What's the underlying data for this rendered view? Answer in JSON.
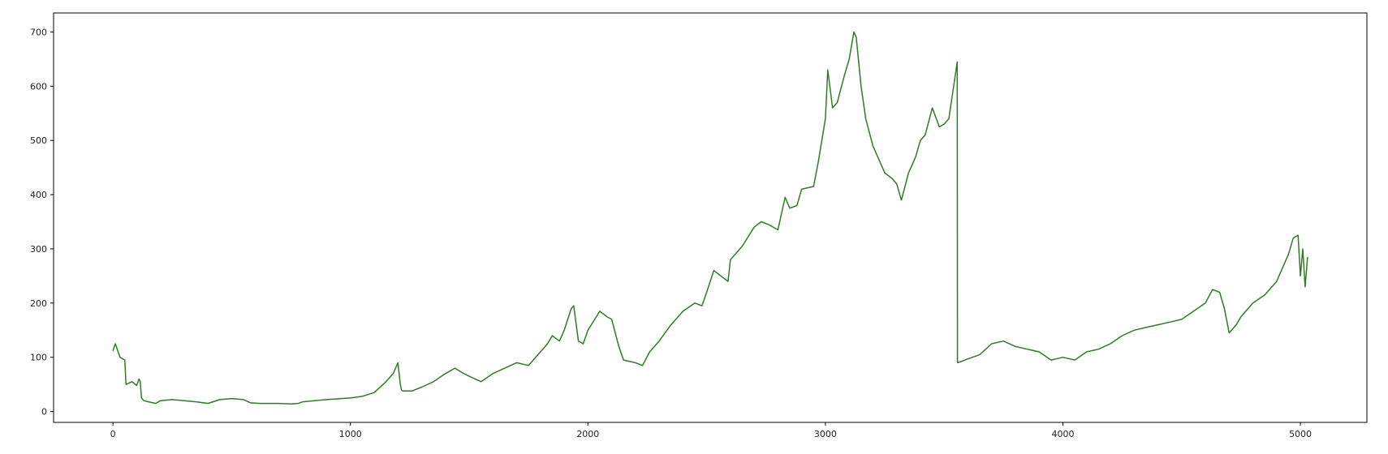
{
  "chart_data": {
    "type": "line",
    "title": "",
    "xlabel": "",
    "ylabel": "",
    "xlim": [
      -250,
      5280
    ],
    "ylim": [
      -20,
      735
    ],
    "grid": false,
    "legend": "none",
    "x_ticks": [
      0,
      1000,
      2000,
      3000,
      4000,
      5000
    ],
    "x_tick_labels": [
      "0",
      "1000",
      "2000",
      "3000",
      "4000",
      "5000"
    ],
    "y_ticks": [
      0,
      100,
      200,
      300,
      400,
      500,
      600,
      700
    ],
    "y_tick_labels": [
      "0",
      "100",
      "200",
      "300",
      "400",
      "500",
      "600",
      "700"
    ],
    "series": [
      {
        "color": "#2e7d24",
        "x": [
          0,
          10,
          30,
          50,
          55,
          80,
          100,
          110,
          115,
          120,
          130,
          150,
          180,
          200,
          250,
          300,
          350,
          400,
          450,
          500,
          550,
          580,
          620,
          700,
          750,
          780,
          800,
          900,
          1000,
          1050,
          1100,
          1150,
          1180,
          1200,
          1210,
          1215,
          1220,
          1260,
          1300,
          1350,
          1400,
          1440,
          1470,
          1500,
          1550,
          1600,
          1650,
          1700,
          1750,
          1780,
          1800,
          1830,
          1850,
          1880,
          1900,
          1930,
          1940,
          1960,
          1980,
          2000,
          2050,
          2080,
          2100,
          2130,
          2150,
          2200,
          2230,
          2260,
          2300,
          2350,
          2400,
          2450,
          2480,
          2500,
          2530,
          2560,
          2590,
          2600,
          2650,
          2700,
          2730,
          2760,
          2800,
          2830,
          2850,
          2880,
          2900,
          2950,
          2970,
          3000,
          3010,
          3030,
          3050,
          3080,
          3100,
          3120,
          3130,
          3150,
          3170,
          3200,
          3230,
          3250,
          3280,
          3300,
          3320,
          3350,
          3380,
          3400,
          3420,
          3450,
          3480,
          3500,
          3520,
          3540,
          3555,
          3556,
          3570,
          3600,
          3650,
          3700,
          3750,
          3800,
          3850,
          3900,
          3950,
          4000,
          4050,
          4100,
          4150,
          4200,
          4250,
          4300,
          4350,
          4400,
          4450,
          4500,
          4550,
          4600,
          4630,
          4660,
          4680,
          4700,
          4730,
          4750,
          4800,
          4850,
          4900,
          4950,
          4970,
          4990,
          5000,
          5010,
          5020,
          5030
        ],
        "values": [
          112,
          125,
          100,
          95,
          50,
          55,
          48,
          60,
          55,
          25,
          20,
          18,
          15,
          20,
          22,
          20,
          18,
          15,
          22,
          24,
          22,
          16,
          15,
          15,
          14,
          15,
          18,
          22,
          25,
          28,
          35,
          55,
          70,
          90,
          50,
          40,
          38,
          38,
          45,
          55,
          70,
          80,
          72,
          65,
          55,
          70,
          80,
          90,
          85,
          100,
          110,
          125,
          140,
          130,
          150,
          190,
          195,
          130,
          125,
          150,
          185,
          175,
          170,
          120,
          95,
          90,
          85,
          110,
          130,
          160,
          185,
          200,
          195,
          220,
          260,
          250,
          240,
          280,
          305,
          340,
          350,
          345,
          335,
          395,
          375,
          380,
          410,
          415,
          460,
          540,
          630,
          560,
          570,
          620,
          650,
          700,
          690,
          600,
          540,
          490,
          460,
          440,
          430,
          420,
          390,
          440,
          470,
          500,
          510,
          560,
          525,
          530,
          540,
          600,
          645,
          90,
          92,
          97,
          105,
          125,
          130,
          120,
          115,
          110,
          95,
          100,
          95,
          110,
          115,
          125,
          140,
          150,
          155,
          160,
          165,
          170,
          185,
          200,
          225,
          220,
          190,
          145,
          160,
          175,
          200,
          215,
          240,
          290,
          320,
          325,
          250,
          300,
          230,
          285
        ]
      }
    ]
  }
}
